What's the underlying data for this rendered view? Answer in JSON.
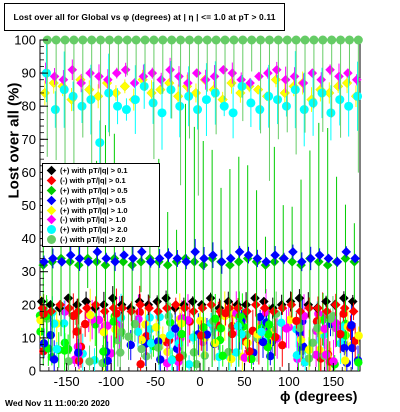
{
  "title": "Lost over all for Global vs φ (degrees) at | η | <= 1.0 at pT > 0.11",
  "footer": "Wed Nov 11 11:00:20 2020",
  "chart_data": {
    "type": "scatter",
    "xlabel": "ϕ (degrees)",
    "ylabel": "Lost over all (%)",
    "xlim": [
      -180,
      180
    ],
    "ylim": [
      0,
      100
    ],
    "xticks": [
      -150,
      -100,
      -50,
      0,
      50,
      100,
      150
    ],
    "yticks": [
      0,
      10,
      20,
      30,
      40,
      50,
      60,
      70,
      80,
      90,
      100
    ],
    "legend_position": "middle-left",
    "series": [
      {
        "name": "(+) with pT/|q| > 0.1",
        "color": "#000000",
        "marker": "diamond",
        "y": [
          21,
          20,
          19,
          22,
          20,
          21,
          19,
          20,
          22,
          20,
          19,
          21,
          20,
          21,
          22,
          19,
          20,
          21,
          20,
          22,
          19,
          21,
          20,
          20,
          22,
          21,
          19,
          20,
          21,
          22,
          20,
          19,
          21,
          20,
          22,
          21
        ]
      },
      {
        "name": "(-) with pT/|q| > 0.1",
        "color": "#ff0000",
        "marker": "diamond",
        "y": [
          19,
          18,
          20,
          19,
          18,
          19,
          20,
          18,
          19,
          19,
          18,
          20,
          19,
          18,
          19,
          20,
          19,
          18,
          19,
          20,
          18,
          19,
          19,
          18,
          20,
          19,
          18,
          19,
          20,
          18,
          19,
          19,
          18,
          20,
          19,
          18
        ]
      },
      {
        "name": "(+) with pT/|q| > 0.5",
        "color": "#00cc00",
        "marker": "diamond",
        "y": [
          32,
          33,
          34,
          33,
          32,
          34,
          33,
          32,
          34,
          33,
          32,
          33,
          34,
          33,
          32,
          33,
          34,
          33,
          32,
          34,
          33,
          32,
          33,
          34,
          33,
          32,
          33,
          34,
          33,
          32,
          34,
          33,
          32,
          33,
          34,
          33
        ]
      },
      {
        "name": "(-) with pT/|q| > 0.5",
        "color": "#0000ff",
        "marker": "diamond",
        "y": [
          33,
          34,
          33,
          35,
          34,
          33,
          36,
          34,
          33,
          35,
          34,
          36,
          33,
          34,
          35,
          34,
          33,
          36,
          34,
          35,
          33,
          34,
          36,
          35,
          34,
          33,
          35,
          34,
          36,
          33,
          34,
          35,
          34,
          33,
          36,
          34
        ]
      },
      {
        "name": "(+) with pT/|q| > 1.0",
        "color": "#ffff00",
        "marker": "diamond",
        "y": [
          84,
          87,
          86,
          82,
          88,
          85,
          83,
          87,
          84,
          86,
          82,
          88,
          84,
          85,
          87,
          83,
          86,
          84,
          88,
          85,
          82,
          87,
          84,
          86,
          85,
          83,
          88,
          84,
          86,
          87,
          82,
          85,
          84,
          86,
          87,
          83
        ]
      },
      {
        "name": "(-) with pT/|q| > 1.0",
        "color": "#ff00ff",
        "marker": "diamond",
        "y": [
          90,
          89,
          88,
          91,
          87,
          90,
          89,
          88,
          90,
          91,
          87,
          89,
          90,
          88,
          91,
          89,
          87,
          90,
          88,
          89,
          91,
          90,
          88,
          87,
          89,
          90,
          91,
          88,
          89,
          87,
          90,
          88,
          91,
          89,
          90,
          88
        ]
      },
      {
        "name": "(+) with pT/|q| > 2.0",
        "color": "#00ffff",
        "marker": "circle",
        "y": [
          90,
          79,
          85,
          83,
          80,
          82,
          69,
          84,
          80,
          79,
          82,
          86,
          81,
          78,
          85,
          80,
          83,
          79,
          82,
          84,
          80,
          78,
          86,
          81,
          79,
          83,
          82,
          80,
          85,
          79,
          81,
          84,
          78,
          82,
          80,
          83
        ]
      },
      {
        "name": "(-) with pT/|q| > 2.0",
        "color": "#66cc66",
        "marker": "circle",
        "y": [
          100,
          100,
          100,
          100,
          100,
          100,
          100,
          100,
          100,
          100,
          100,
          100,
          100,
          100,
          100,
          100,
          100,
          100,
          100,
          100,
          100,
          100,
          100,
          100,
          100,
          100,
          100,
          100,
          100,
          100,
          100,
          100,
          100,
          100,
          100,
          100
        ]
      }
    ],
    "low_cluster_note": ""
  }
}
